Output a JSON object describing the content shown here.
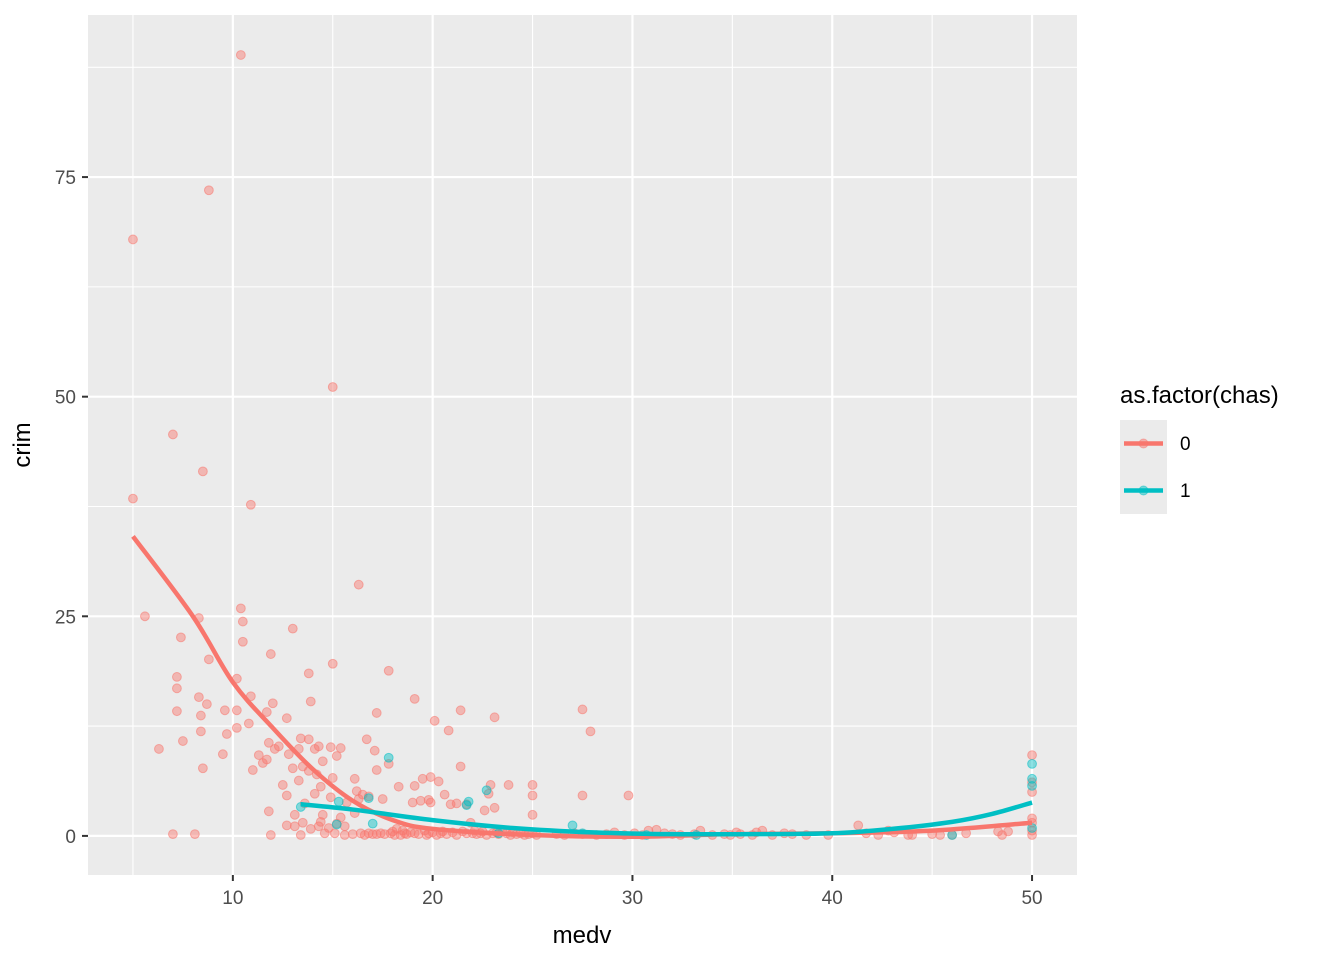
{
  "chart_data": {
    "type": "scatter",
    "xlabel": "medv",
    "ylabel": "crim",
    "xlim": [
      2.75,
      52.25
    ],
    "ylim": [
      -4.45,
      93.45
    ],
    "x_ticks": [
      10,
      20,
      30,
      40,
      50
    ],
    "y_ticks": [
      0,
      25,
      50,
      75
    ],
    "grid": true,
    "legend": {
      "title": "as.factor(chas)",
      "placement": "right",
      "entries": [
        "0",
        "1"
      ]
    },
    "colors": {
      "0": "#F8766D",
      "1": "#00BFC4",
      "panel": "#EBEBEB",
      "grid": "#FFFFFF"
    },
    "series": [
      {
        "name": "0",
        "color": "#F8766D",
        "points": [
          [
            5.0,
            67.9
          ],
          [
            5.0,
            38.4
          ],
          [
            5.6,
            25.0
          ],
          [
            6.3,
            9.9
          ],
          [
            7.0,
            45.7
          ],
          [
            7.0,
            0.2
          ],
          [
            7.2,
            18.1
          ],
          [
            7.2,
            16.8
          ],
          [
            7.2,
            14.2
          ],
          [
            7.4,
            22.6
          ],
          [
            7.5,
            10.8
          ],
          [
            8.1,
            0.2
          ],
          [
            8.3,
            24.8
          ],
          [
            8.3,
            15.8
          ],
          [
            8.4,
            13.7
          ],
          [
            8.4,
            11.9
          ],
          [
            8.5,
            41.5
          ],
          [
            8.5,
            7.7
          ],
          [
            8.7,
            15.0
          ],
          [
            8.8,
            73.5
          ],
          [
            8.8,
            20.1
          ],
          [
            9.5,
            9.3
          ],
          [
            9.6,
            14.3
          ],
          [
            9.7,
            11.6
          ],
          [
            10.2,
            14.3
          ],
          [
            10.2,
            17.9
          ],
          [
            10.2,
            12.3
          ],
          [
            10.4,
            88.9
          ],
          [
            10.4,
            25.9
          ],
          [
            10.5,
            24.4
          ],
          [
            10.5,
            22.1
          ],
          [
            10.8,
            12.8
          ],
          [
            10.9,
            37.7
          ],
          [
            10.9,
            15.9
          ],
          [
            11.0,
            7.5
          ],
          [
            11.3,
            9.2
          ],
          [
            11.5,
            8.3
          ],
          [
            11.7,
            14.1
          ],
          [
            11.7,
            8.7
          ],
          [
            11.8,
            2.8
          ],
          [
            11.8,
            10.6
          ],
          [
            11.9,
            20.7
          ],
          [
            11.9,
            0.1
          ],
          [
            12.0,
            15.1
          ],
          [
            12.1,
            9.9
          ],
          [
            12.3,
            10.2
          ],
          [
            12.5,
            5.8
          ],
          [
            12.7,
            13.4
          ],
          [
            12.7,
            4.6
          ],
          [
            12.7,
            1.2
          ],
          [
            12.8,
            9.3
          ],
          [
            13.0,
            23.6
          ],
          [
            13.0,
            7.7
          ],
          [
            13.1,
            2.4
          ],
          [
            13.1,
            1.1
          ],
          [
            13.3,
            9.9
          ],
          [
            13.3,
            6.3
          ],
          [
            13.4,
            11.1
          ],
          [
            13.4,
            0.1
          ],
          [
            13.5,
            7.9
          ],
          [
            13.5,
            1.5
          ],
          [
            13.6,
            3.7
          ],
          [
            13.8,
            11.0
          ],
          [
            13.8,
            18.5
          ],
          [
            13.8,
            7.4
          ],
          [
            13.9,
            15.3
          ],
          [
            13.9,
            0.8
          ],
          [
            14.1,
            9.9
          ],
          [
            14.1,
            4.8
          ],
          [
            14.2,
            7.0
          ],
          [
            14.3,
            10.2
          ],
          [
            14.3,
            1.1
          ],
          [
            14.4,
            5.6
          ],
          [
            14.4,
            1.6
          ],
          [
            14.5,
            8.5
          ],
          [
            14.5,
            2.4
          ],
          [
            14.6,
            0.3
          ],
          [
            14.8,
            0.9
          ],
          [
            14.9,
            10.1
          ],
          [
            14.9,
            4.4
          ],
          [
            15.0,
            51.1
          ],
          [
            15.0,
            19.6
          ],
          [
            15.0,
            6.6
          ],
          [
            15.1,
            0.3
          ],
          [
            15.2,
            9.1
          ],
          [
            15.2,
            1.4
          ],
          [
            15.4,
            10.0
          ],
          [
            15.4,
            2.1
          ],
          [
            15.6,
            1.1
          ],
          [
            15.6,
            0.1
          ],
          [
            15.7,
            3.8
          ],
          [
            16.0,
            0.2
          ],
          [
            16.1,
            6.5
          ],
          [
            16.1,
            2.6
          ],
          [
            16.2,
            5.1
          ],
          [
            16.3,
            28.6
          ],
          [
            16.3,
            4.2
          ],
          [
            16.4,
            0.3
          ],
          [
            16.5,
            4.7
          ],
          [
            16.6,
            0.1
          ],
          [
            16.7,
            11.0
          ],
          [
            16.8,
            4.5
          ],
          [
            16.8,
            0.3
          ],
          [
            17.0,
            0.2
          ],
          [
            17.1,
            9.7
          ],
          [
            17.2,
            14.0
          ],
          [
            17.2,
            7.5
          ],
          [
            17.2,
            0.2
          ],
          [
            17.4,
            0.3
          ],
          [
            17.5,
            4.2
          ],
          [
            17.6,
            0.2
          ],
          [
            17.8,
            8.2
          ],
          [
            17.8,
            18.8
          ],
          [
            17.9,
            0.3
          ],
          [
            18.0,
            0.5
          ],
          [
            18.1,
            0.1
          ],
          [
            18.2,
            0.8
          ],
          [
            18.3,
            5.6
          ],
          [
            18.4,
            0.1
          ],
          [
            18.5,
            0.6
          ],
          [
            18.6,
            0.3
          ],
          [
            18.7,
            0.2
          ],
          [
            18.9,
            0.4
          ],
          [
            19.0,
            3.8
          ],
          [
            19.1,
            15.6
          ],
          [
            19.1,
            5.7
          ],
          [
            19.1,
            0.3
          ],
          [
            19.3,
            0.2
          ],
          [
            19.4,
            4.0
          ],
          [
            19.5,
            6.5
          ],
          [
            19.6,
            0.6
          ],
          [
            19.7,
            0.1
          ],
          [
            19.8,
            4.1
          ],
          [
            19.8,
            0.3
          ],
          [
            19.9,
            6.7
          ],
          [
            19.9,
            3.8
          ],
          [
            20.0,
            0.4
          ],
          [
            20.1,
            13.1
          ],
          [
            20.2,
            0.1
          ],
          [
            20.3,
            6.2
          ],
          [
            20.4,
            0.3
          ],
          [
            20.5,
            0.5
          ],
          [
            20.6,
            4.7
          ],
          [
            20.7,
            0.2
          ],
          [
            20.8,
            12.0
          ],
          [
            20.9,
            3.6
          ],
          [
            21.0,
            0.4
          ],
          [
            21.2,
            3.7
          ],
          [
            21.2,
            0.1
          ],
          [
            21.4,
            14.3
          ],
          [
            21.4,
            7.9
          ],
          [
            21.5,
            0.5
          ],
          [
            21.7,
            3.6
          ],
          [
            21.7,
            0.3
          ],
          [
            21.9,
            1.5
          ],
          [
            22.0,
            0.3
          ],
          [
            22.1,
            0.6
          ],
          [
            22.2,
            0.2
          ],
          [
            22.4,
            0.3
          ],
          [
            22.5,
            0.5
          ],
          [
            22.6,
            2.9
          ],
          [
            22.7,
            0.1
          ],
          [
            22.8,
            4.8
          ],
          [
            22.9,
            5.8
          ],
          [
            23.0,
            0.3
          ],
          [
            23.1,
            13.5
          ],
          [
            23.1,
            3.2
          ],
          [
            23.2,
            0.4
          ],
          [
            23.3,
            0.2
          ],
          [
            23.5,
            0.5
          ],
          [
            23.7,
            0.3
          ],
          [
            23.8,
            5.8
          ],
          [
            23.9,
            0.1
          ],
          [
            24.0,
            0.4
          ],
          [
            24.2,
            0.2
          ],
          [
            24.4,
            0.3
          ],
          [
            24.6,
            0.1
          ],
          [
            24.8,
            0.2
          ],
          [
            25.0,
            5.8
          ],
          [
            25.0,
            4.6
          ],
          [
            25.0,
            2.4
          ],
          [
            25.0,
            0.3
          ],
          [
            25.2,
            0.1
          ],
          [
            26.2,
            0.2
          ],
          [
            26.6,
            0.1
          ],
          [
            27.1,
            0.3
          ],
          [
            27.5,
            14.4
          ],
          [
            27.5,
            4.6
          ],
          [
            27.5,
            0.2
          ],
          [
            27.9,
            11.9
          ],
          [
            28.2,
            0.1
          ],
          [
            28.7,
            0.2
          ],
          [
            29.1,
            0.4
          ],
          [
            29.6,
            0.1
          ],
          [
            29.8,
            4.6
          ],
          [
            30.1,
            0.3
          ],
          [
            30.5,
            0.1
          ],
          [
            30.8,
            0.6
          ],
          [
            31.2,
            0.7
          ],
          [
            31.6,
            0.3
          ],
          [
            32.0,
            0.2
          ],
          [
            32.4,
            0.1
          ],
          [
            33.1,
            0.2
          ],
          [
            33.4,
            0.6
          ],
          [
            34.0,
            0.1
          ],
          [
            34.6,
            0.2
          ],
          [
            34.9,
            0.1
          ],
          [
            35.2,
            0.4
          ],
          [
            35.4,
            0.2
          ],
          [
            36.0,
            0.1
          ],
          [
            36.2,
            0.4
          ],
          [
            36.5,
            0.6
          ],
          [
            37.0,
            0.1
          ],
          [
            37.6,
            0.3
          ],
          [
            38.0,
            0.2
          ],
          [
            38.7,
            0.1
          ],
          [
            39.8,
            0.1
          ],
          [
            41.3,
            1.2
          ],
          [
            41.7,
            0.3
          ],
          [
            42.3,
            0.1
          ],
          [
            42.8,
            0.6
          ],
          [
            43.1,
            0.4
          ],
          [
            43.8,
            0.1
          ],
          [
            44.0,
            0.1
          ],
          [
            45.0,
            0.2
          ],
          [
            45.4,
            0.1
          ],
          [
            46.0,
            0.1
          ],
          [
            46.7,
            0.3
          ],
          [
            48.3,
            0.5
          ],
          [
            48.5,
            0.1
          ],
          [
            48.8,
            0.5
          ],
          [
            50.0,
            9.2
          ],
          [
            50.0,
            6.1
          ],
          [
            50.0,
            5.0
          ],
          [
            50.0,
            2.0
          ],
          [
            50.0,
            1.5
          ],
          [
            50.0,
            0.6
          ],
          [
            50.0,
            0.1
          ]
        ],
        "smooth": [
          [
            5,
            34.1
          ],
          [
            8,
            25.0
          ],
          [
            10,
            17.5
          ],
          [
            12,
            12.3
          ],
          [
            14,
            7.6
          ],
          [
            16,
            4.0
          ],
          [
            18,
            1.8
          ],
          [
            20,
            0.8
          ],
          [
            25,
            0.1
          ],
          [
            30,
            -0.1
          ],
          [
            35,
            0.2
          ],
          [
            40,
            0.3
          ],
          [
            45,
            0.6
          ],
          [
            50,
            1.5
          ]
        ]
      },
      {
        "name": "1",
        "color": "#00BFC4",
        "points": [
          [
            13.4,
            3.3
          ],
          [
            15.2,
            1.3
          ],
          [
            15.3,
            3.9
          ],
          [
            16.8,
            4.3
          ],
          [
            17.0,
            1.4
          ],
          [
            17.8,
            8.9
          ],
          [
            21.7,
            3.5
          ],
          [
            21.8,
            3.9
          ],
          [
            22.7,
            5.2
          ],
          [
            23.3,
            0.3
          ],
          [
            27.0,
            1.2
          ],
          [
            27.5,
            0.3
          ],
          [
            30.7,
            0.1
          ],
          [
            33.2,
            0.1
          ],
          [
            46.0,
            0.1
          ],
          [
            50.0,
            8.2
          ],
          [
            50.0,
            6.5
          ],
          [
            50.0,
            5.7
          ],
          [
            50.0,
            0.9
          ]
        ],
        "smooth": [
          [
            13.4,
            3.6
          ],
          [
            16,
            3.0
          ],
          [
            20,
            1.8
          ],
          [
            24,
            0.9
          ],
          [
            28,
            0.4
          ],
          [
            32,
            0.2
          ],
          [
            36,
            0.2
          ],
          [
            40,
            0.3
          ],
          [
            43,
            0.8
          ],
          [
            46,
            1.6
          ],
          [
            48,
            2.5
          ],
          [
            50,
            3.8
          ]
        ]
      }
    ]
  }
}
